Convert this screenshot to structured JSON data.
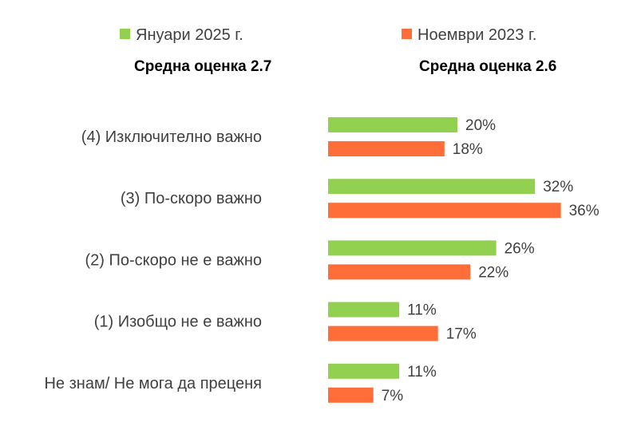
{
  "colors": {
    "series_2025": "#92d050",
    "series_2023": "#ff6d38",
    "text": "#404040",
    "heading": "#000000"
  },
  "legend": [
    {
      "name": "Януари 2025 г.",
      "average": "Средна оценка 2.7"
    },
    {
      "name": "Ноември 2023 г.",
      "average": "Средна оценка 2.6"
    }
  ],
  "chart_data": {
    "type": "bar",
    "orientation": "horizontal",
    "categories": [
      "(4) Изключително важно",
      "(3) По-скоро важно",
      "(2) По-скоро не е важно",
      "(1) Изобщо не е важно",
      "Не знам/ Не мога да преценя"
    ],
    "series": [
      {
        "name": "Януари 2025 г.",
        "values": [
          20,
          32,
          26,
          11,
          11
        ],
        "labels": [
          "20%",
          "32%",
          "26%",
          "11%",
          "11%"
        ]
      },
      {
        "name": "Ноември 2023 г.",
        "values": [
          18,
          36,
          22,
          17,
          7
        ],
        "labels": [
          "18%",
          "36%",
          "22%",
          "17%",
          "7%"
        ]
      }
    ],
    "unit": "%",
    "xlim": [
      0,
      50
    ],
    "grid": false,
    "legend_position": "top"
  }
}
